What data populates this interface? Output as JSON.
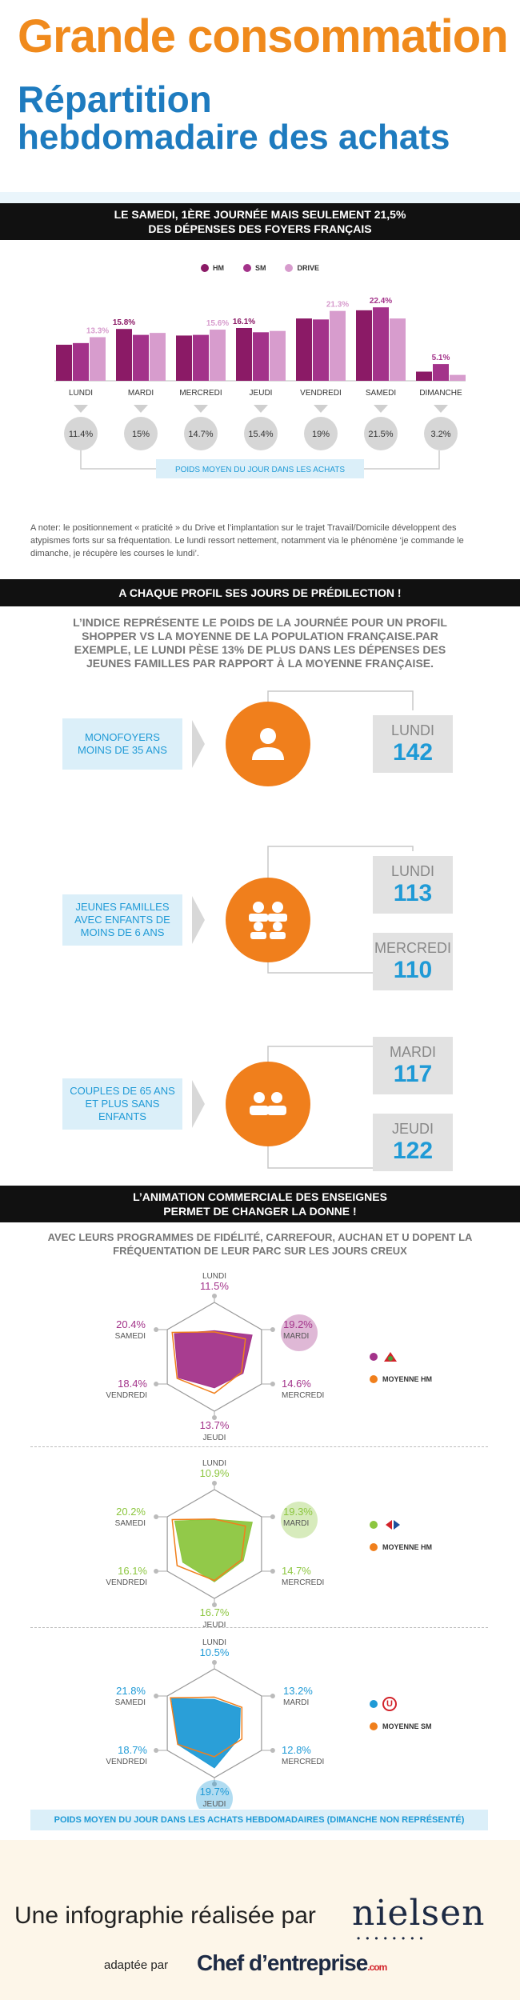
{
  "header": {
    "title_line1": "Grande consommation",
    "title_line2": "Répartition",
    "title_line3": "hebdomadaire des achats"
  },
  "section1": {
    "banner_line1": "LE SAMEDI, 1ÈRE JOURNÉE MAIS SEULEMENT 21,5%",
    "banner_line2": "DES DÉPENSES DES FOYERS FRANÇAIS",
    "avg_caption": "POIDS MOYEN DU JOUR DANS LES ACHATS",
    "note": "A noter: le positionnement « praticité » du Drive et l’implantation sur le trajet Travail/Domicile développent des atypismes forts sur sa fréquentation. Le lundi ressort nettement, notamment via le phénomène ‘je commande le dimanche, je récupère les courses le lundi’."
  },
  "colors": {
    "hm": "#8b1a66",
    "sm": "#a3338a",
    "drive": "#d79ccd",
    "orange": "#f07f1c",
    "blue": "#1f9ad6",
    "green": "#8cc63f"
  },
  "chart_data": [
    {
      "type": "bar",
      "categories": [
        "LUNDI",
        "MARDI",
        "MERCREDI",
        "JEUDI",
        "VENDREDI",
        "SAMEDI",
        "DIMANCHE"
      ],
      "series": [
        {
          "name": "HM",
          "values": [
            11.0,
            15.8,
            13.8,
            16.1,
            19.0,
            21.5,
            2.8
          ]
        },
        {
          "name": "SM",
          "values": [
            11.5,
            14.0,
            14.0,
            14.8,
            18.7,
            22.4,
            5.1
          ]
        },
        {
          "name": "DRIVE",
          "values": [
            13.3,
            14.6,
            15.6,
            15.2,
            21.3,
            19.0,
            1.8
          ]
        }
      ],
      "data_labels": [
        {
          "category": "LUNDI",
          "series": "DRIVE",
          "text": "13.3%"
        },
        {
          "category": "MARDI",
          "series": "HM",
          "text": "15.8%"
        },
        {
          "category": "MERCREDI",
          "series": "DRIVE",
          "text": "15.6%"
        },
        {
          "category": "JEUDI",
          "series": "HM",
          "text": "16.1%"
        },
        {
          "category": "VENDREDI",
          "series": "DRIVE",
          "text": "21.3%"
        },
        {
          "category": "SAMEDI",
          "series": "SM",
          "text": "22.4%"
        },
        {
          "category": "DIMANCHE",
          "series": "SM",
          "text": "5.1%"
        }
      ],
      "averages": [
        "11.4%",
        "15%",
        "14.7%",
        "15.4%",
        "19%",
        "21.5%",
        "3.2%"
      ],
      "legend": "top-center",
      "ylim": [
        0,
        25
      ]
    },
    {
      "type": "radar",
      "axes": [
        "LUNDI",
        "MARDI",
        "MERCREDI",
        "JEUDI",
        "VENDREDI",
        "SAMEDI"
      ],
      "labels": [
        "11.5%",
        "19.2%",
        "14.6%",
        "13.7%",
        "18.4%",
        "20.4%"
      ],
      "series": [
        {
          "values": [
            11.5,
            19.2,
            14.6,
            13.7,
            18.4,
            20.4
          ]
        },
        {
          "name": "MOYENNE HM",
          "values": [
            11.0,
            15.8,
            13.8,
            16.1,
            19.0,
            21.5
          ]
        }
      ],
      "highlight": "MARDI",
      "range": [
        0,
        24
      ]
    },
    {
      "type": "radar",
      "axes": [
        "LUNDI",
        "MARDI",
        "MERCREDI",
        "JEUDI",
        "VENDREDI",
        "SAMEDI"
      ],
      "labels": [
        "10.9%",
        "19.3%",
        "14.7%",
        "16.7%",
        "16.1%",
        "20.2%"
      ],
      "series": [
        {
          "values": [
            10.9,
            19.3,
            14.7,
            16.7,
            16.1,
            20.2
          ]
        },
        {
          "name": "MOYENNE HM",
          "values": [
            11.0,
            15.8,
            13.8,
            16.1,
            19.0,
            21.5
          ]
        }
      ],
      "highlight": "MARDI",
      "range": [
        0,
        24
      ]
    },
    {
      "type": "radar",
      "axes": [
        "LUNDI",
        "MARDI",
        "MERCREDI",
        "JEUDI",
        "VENDREDI",
        "SAMEDI"
      ],
      "labels": [
        "10.5%",
        "13.2%",
        "12.8%",
        "19.7%",
        "18.7%",
        "21.8%"
      ],
      "series": [
        {
          "values": [
            10.5,
            13.2,
            12.8,
            19.7,
            18.7,
            21.8
          ]
        },
        {
          "name": "MOYENNE SM",
          "values": [
            11.5,
            14.0,
            14.0,
            14.8,
            18.7,
            22.4
          ]
        }
      ],
      "highlight": "JEUDI",
      "range": [
        0,
        24
      ]
    }
  ],
  "section2": {
    "banner": "A CHAQUE PROFIL SES JOURS DE PRÉDILECTION !",
    "intro": "L’INDICE REPRÉSENTE LE POIDS DE LA JOURNÉE POUR UN PROFIL SHOPPER VS LA MOYENNE DE LA POPULATION FRANÇAISE.PAR EXEMPLE, LE LUNDI PÈSE 13% DE PLUS DANS LES DÉPENSES DES JEUNES FAMILLES PAR RAPPORT À LA MOYENNE FRANÇAISE.",
    "profiles": [
      {
        "label": "MONOFOYERS MOINS DE 35 ANS",
        "icon": "single-person-icon",
        "days": [
          {
            "day": "LUNDI",
            "index": "142"
          }
        ]
      },
      {
        "label": "JEUNES FAMILLES AVEC ENFANTS DE MOINS DE 6 ANS",
        "icon": "family-icon",
        "days": [
          {
            "day": "LUNDI",
            "index": "113"
          },
          {
            "day": "MERCREDI",
            "index": "110"
          }
        ]
      },
      {
        "label": "COUPLES DE 65 ANS ET PLUS SANS ENFANTS",
        "icon": "couple-icon",
        "days": [
          {
            "day": "MARDI",
            "index": "117"
          },
          {
            "day": "JEUDI",
            "index": "122"
          }
        ]
      }
    ]
  },
  "section3": {
    "banner_line1": "L’ANIMATION COMMERCIALE DES ENSEIGNES",
    "banner_line2": "PERMET DE CHANGER LA DONNE !",
    "intro": "AVEC LEURS PROGRAMMES DE FIDÉLITÉ, CARREFOUR, AUCHAN ET U DOPENT LA FRÉQUENTATION DE LEUR PARC SUR LES JOURS CREUX",
    "legend": [
      {
        "brand_icon": "auchan-logo-icon",
        "avg": "MOYENNE HM"
      },
      {
        "brand_icon": "carrefour-logo-icon",
        "avg": "MOYENNE HM"
      },
      {
        "brand_icon": "systeme-u-logo-icon",
        "brand_text": "U",
        "avg": "MOYENNE SM"
      }
    ],
    "caption": "POIDS MOYEN DU JOUR DANS LES ACHATS HEBDOMADAIRES (DIMANCHE NON REPRÉSENTÉ)"
  },
  "footer": {
    "made_by": "Une infographie réalisée par",
    "brand": "nielsen",
    "brand_dots": "••••••••",
    "adapted_by": "adaptée par",
    "adapter": "Chef d’entreprise",
    "adapter_suffix": ".com"
  }
}
